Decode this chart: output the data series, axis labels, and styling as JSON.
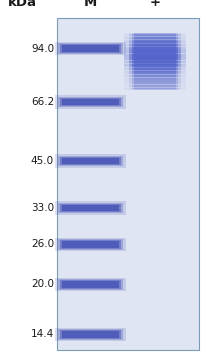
{
  "kda_labels": [
    "94.0",
    "66.2",
    "45.0",
    "33.0",
    "26.0",
    "20.0",
    "14.4"
  ],
  "kda_values": [
    94.0,
    66.2,
    45.0,
    33.0,
    26.0,
    20.0,
    14.4
  ],
  "col_headers": [
    "M",
    "+"
  ],
  "kda_header": "kDa",
  "gel_bg": "#dfe5f2",
  "gel_border": "#7a9cb8",
  "marker_color": "#4a56b8",
  "marker_alpha": 0.85,
  "sample_band_color": "#5565cc",
  "background_color": "#ffffff",
  "font_color": "#1a1a1a",
  "label_fontsize": 7.5,
  "header_fontsize": 9.5,
  "log_scale_min": 13.0,
  "log_scale_max": 115.0
}
